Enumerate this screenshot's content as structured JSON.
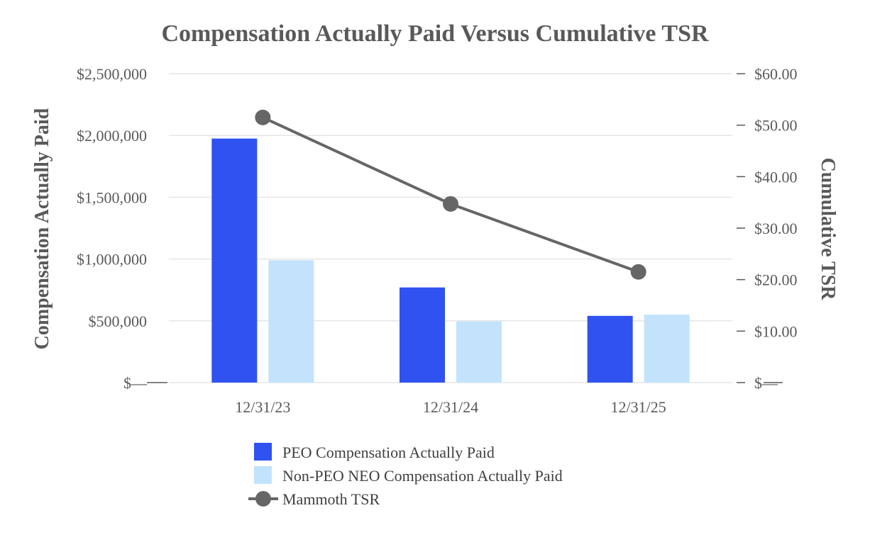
{
  "chart_data": {
    "type": "bar",
    "title": "Compensation Actually Paid Versus Cumulative TSR",
    "ylabel": "Compensation Actually Paid",
    "y2label": "Cumulative TSR",
    "categories": [
      "12/31/23",
      "12/31/24",
      "12/31/25"
    ],
    "ylim": [
      0,
      2500000
    ],
    "y2lim": [
      0,
      60
    ],
    "y_ticks": [
      {
        "value": 0,
        "label": "$—"
      },
      {
        "value": 500000,
        "label": "$500,000"
      },
      {
        "value": 1000000,
        "label": "$1,000,000"
      },
      {
        "value": 1500000,
        "label": "$1,500,000"
      },
      {
        "value": 2000000,
        "label": "$2,000,000"
      },
      {
        "value": 2500000,
        "label": "$2,500,000"
      }
    ],
    "y2_ticks": [
      {
        "value": 0,
        "label": "$—"
      },
      {
        "value": 10,
        "label": "$10.00"
      },
      {
        "value": 20,
        "label": "$20.00"
      },
      {
        "value": 30,
        "label": "$30.00"
      },
      {
        "value": 40,
        "label": "$40.00"
      },
      {
        "value": 50,
        "label": "$50.00"
      },
      {
        "value": 60,
        "label": "$60.00"
      }
    ],
    "series": [
      {
        "name": "PEO Compensation Actually Paid",
        "kind": "bar",
        "axis": "left",
        "color": "#2f52f0",
        "values": [
          1975000,
          770000,
          540000
        ]
      },
      {
        "name": "Non-PEO NEO Compensation Actually Paid",
        "kind": "bar",
        "axis": "left",
        "color": "#c3e3fc",
        "values": [
          990000,
          495000,
          550000
        ]
      },
      {
        "name": "Mammoth TSR",
        "kind": "line",
        "axis": "right",
        "color": "#666666",
        "values": [
          51.5,
          34.7,
          21.5
        ]
      }
    ],
    "grid": true,
    "legend_position": "bottom"
  }
}
